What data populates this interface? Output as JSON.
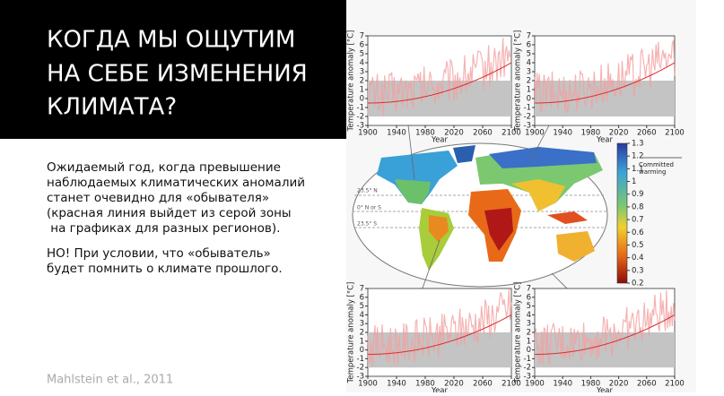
{
  "header": {
    "title_lines": [
      "КОГДА МЫ ОЩУТИМ",
      "НА СЕБЕ ИЗМЕНЕНИЯ",
      "КЛИМАТА?"
    ]
  },
  "body": {
    "paragraphs": [
      [
        "Ожидаемый год, когда превышение",
        "наблюдаемых климатических аномалий",
        "станет очевидно для «обывателя»",
        "(красная линия выйдет из серой зоны",
        " на графиках для разных регионов)."
      ],
      [
        "НО! При условии, что «обыватель»",
        "будет помнить о климате прошлого."
      ]
    ]
  },
  "citation": "Mahlstein et al., 2011",
  "figure": {
    "panel_axes": {
      "ylabel": "Temperature anomaly [°C]",
      "xlabel": "Year",
      "xlim": [
        1900,
        2100
      ],
      "xticks": [
        1900,
        1940,
        1980,
        2020,
        2060,
        2100
      ],
      "ylim": [
        -3,
        7
      ],
      "yticks": [
        -3,
        -2,
        -1,
        0,
        1,
        2,
        3,
        4,
        5,
        6,
        7
      ]
    },
    "map": {
      "latitude_labels": [
        "23.5° N",
        "0° N or S",
        "23.5° S"
      ]
    },
    "colorbar": {
      "lim": [
        0.2,
        1.3
      ],
      "ticks": [
        0.2,
        0.3,
        0.4,
        0.5,
        0.6,
        0.7,
        0.8,
        0.9,
        1,
        1.1,
        1.2,
        1.3
      ],
      "label": "Committed warming"
    }
  }
}
